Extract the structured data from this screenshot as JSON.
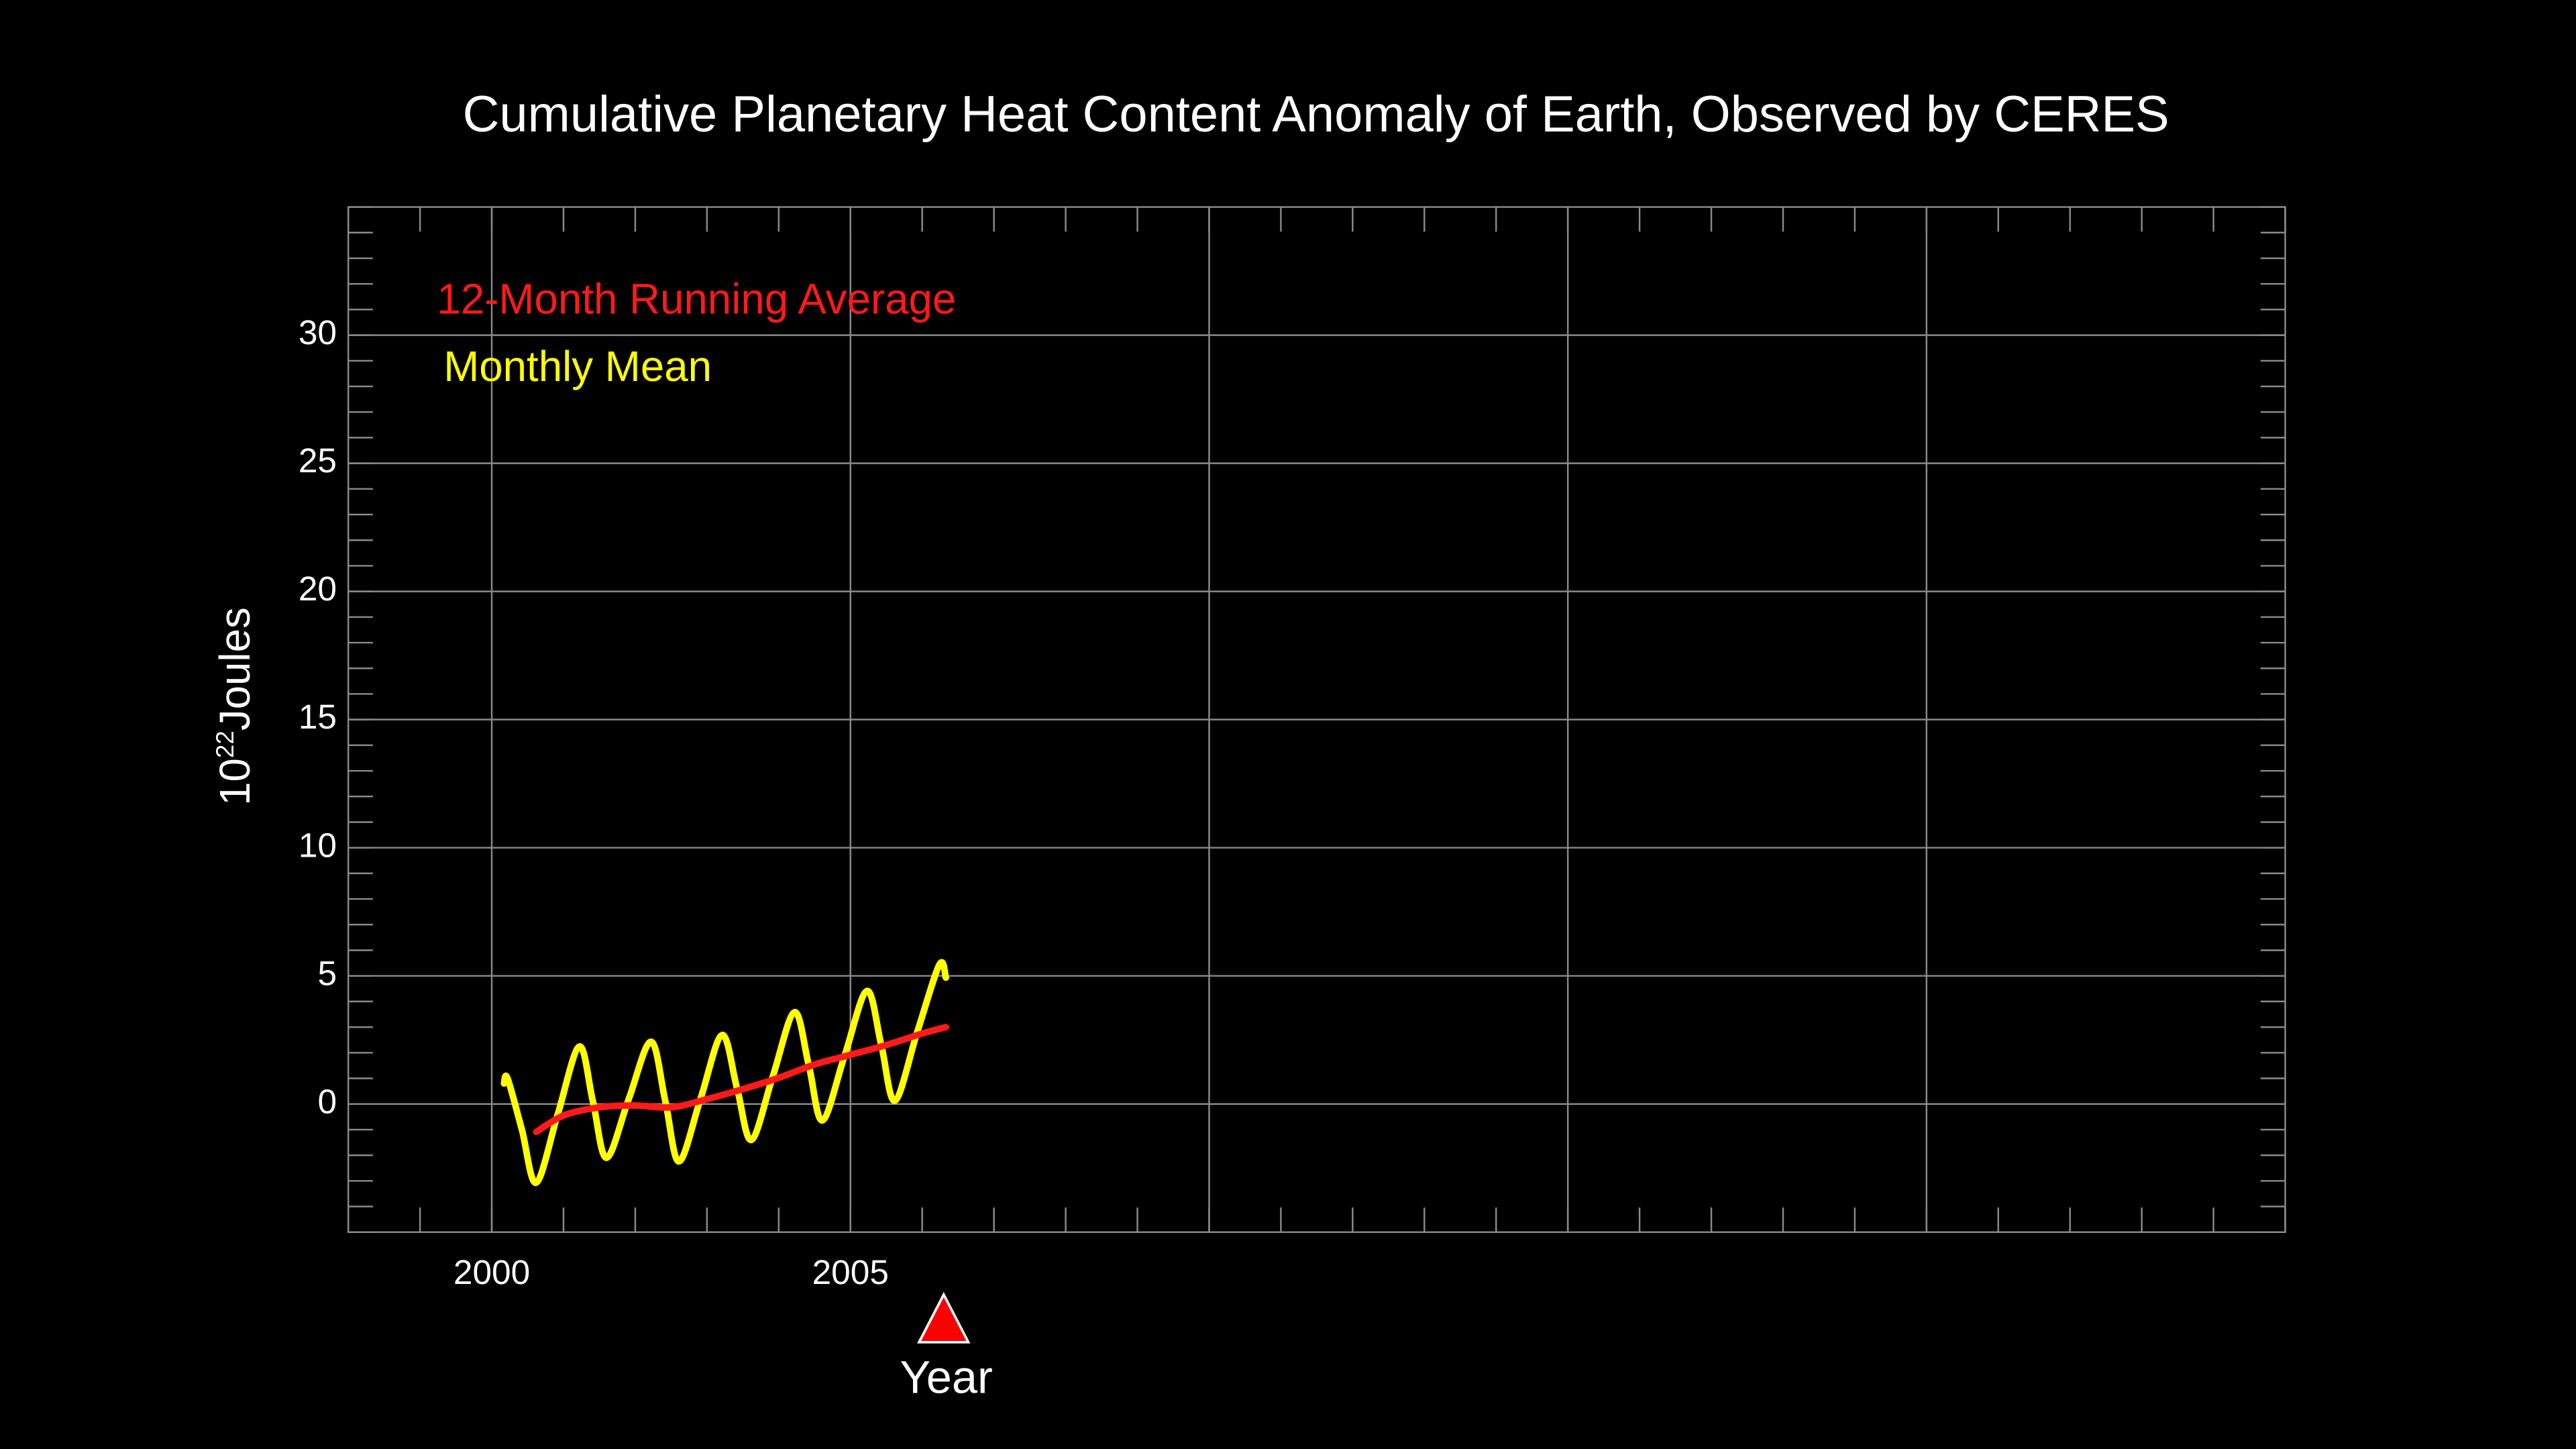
{
  "chart_data": {
    "type": "line",
    "title": "Cumulative Planetary Heat Content Anomaly of Earth, Observed by CERES",
    "x_label": "Year",
    "y_label": {
      "base": "10",
      "exponent": "22",
      "unit": "Joules"
    },
    "xlim": [
      1998,
      2025
    ],
    "ylim": [
      -5,
      35
    ],
    "xticks": [
      2000,
      2005
    ],
    "xgrid": [
      2000,
      2005,
      2010,
      2015,
      2020
    ],
    "yticks": [
      0,
      5,
      10,
      15,
      20,
      25,
      30
    ],
    "minor_xtick_step": 1,
    "minor_ytick_step": 1,
    "grid": true,
    "current_x": 2006.3,
    "current_marker_color": "#ff0000",
    "legend": "upper left",
    "series": [
      {
        "name": "12-Month Running Average",
        "color": "#ff1a1a",
        "x": [
          2000.62,
          2001.0,
          2001.5,
          2002.0,
          2002.5,
          2003.0,
          2003.5,
          2004.0,
          2004.5,
          2005.0,
          2005.5,
          2006.0,
          2006.33
        ],
        "values": [
          -1.09,
          -0.45,
          -0.13,
          -0.06,
          -0.13,
          0.19,
          0.58,
          1.02,
          1.54,
          1.92,
          2.3,
          2.75,
          3.0
        ]
      },
      {
        "name": "Monthly Mean",
        "color": "#ffff00",
        "x": [
          2000.17,
          2000.22,
          2000.42,
          2000.62,
          2000.92,
          2001.22,
          2001.41,
          2001.6,
          2001.91,
          2002.22,
          2002.42,
          2002.61,
          2002.91,
          2003.21,
          2003.42,
          2003.62,
          2003.92,
          2004.22,
          2004.42,
          2004.61,
          2004.92,
          2005.23,
          2005.43,
          2005.62,
          2005.93,
          2006.24,
          2006.33
        ],
        "values": [
          0.8,
          1.0,
          -1.0,
          -3.07,
          -0.4,
          2.24,
          0.1,
          -2.1,
          0.2,
          2.43,
          0.1,
          -2.24,
          0.2,
          2.69,
          0.6,
          -1.4,
          1.1,
          3.58,
          1.5,
          -0.64,
          1.9,
          4.41,
          2.3,
          0.13,
          2.8,
          5.44,
          4.93
        ]
      }
    ]
  }
}
